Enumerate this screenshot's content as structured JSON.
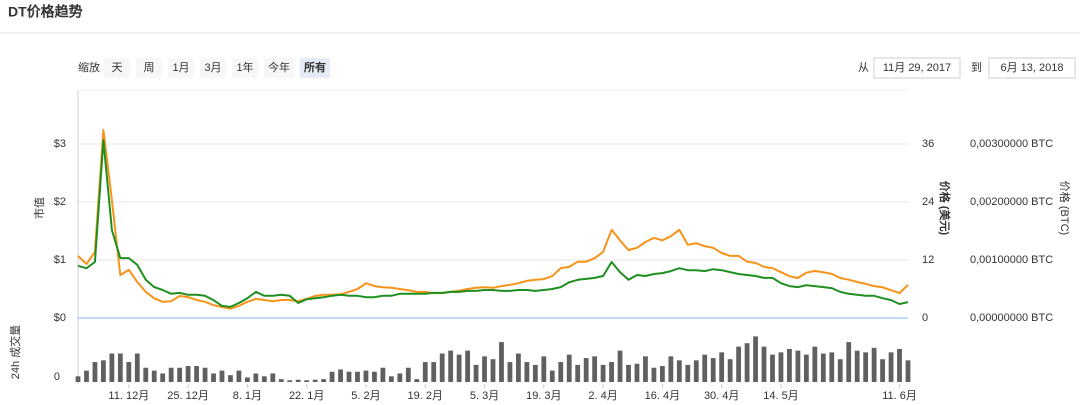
{
  "header": {
    "title": "DT价格趋势"
  },
  "controls": {
    "zoom_label": "缩放",
    "buttons": [
      "天",
      "周",
      "1月",
      "3月",
      "1年",
      "今年",
      "所有"
    ],
    "selected": "所有",
    "from_label": "从",
    "from_date": "11月 29, 2017",
    "to_label": "到",
    "to_date": "6月 13, 2018"
  },
  "chart_data": {
    "type": "line",
    "categories": [
      null,
      null,
      null,
      null,
      null,
      null,
      "11. 12月",
      null,
      null,
      null,
      null,
      null,
      null,
      "25. 12月",
      null,
      null,
      null,
      null,
      null,
      null,
      "8. 1月",
      null,
      null,
      null,
      null,
      null,
      null,
      "22. 1月",
      null,
      null,
      null,
      null,
      null,
      null,
      "5. 2月",
      null,
      null,
      null,
      null,
      null,
      null,
      "19. 2月",
      null,
      null,
      null,
      null,
      null,
      null,
      "5. 3月",
      null,
      null,
      null,
      null,
      null,
      null,
      "19. 3月",
      null,
      null,
      null,
      null,
      null,
      null,
      "2. 4月",
      null,
      null,
      null,
      null,
      null,
      null,
      "16. 4月",
      null,
      null,
      null,
      null,
      null,
      null,
      "30. 4月",
      null,
      null,
      null,
      null,
      null,
      null,
      "14. 5月",
      null,
      null,
      null,
      null,
      null,
      null,
      null,
      null,
      null,
      null,
      null,
      null,
      null,
      "11. 6月",
      null
    ],
    "ylabel": "市值",
    "ylim": [
      0,
      3.93
    ],
    "yticks": [
      {
        "value": 0,
        "label": "$0"
      },
      {
        "value": 1,
        "label": "$1"
      },
      {
        "value": 2,
        "label": "$2"
      },
      {
        "value": 3,
        "label": "$3"
      }
    ],
    "y2label": "价格 (美元)",
    "y2lim": [
      0,
      47.2
    ],
    "y2ticks": [
      0,
      12,
      24,
      36
    ],
    "y3label": "价格 (BTC)",
    "y3lim": [
      0,
      0.00393
    ],
    "y3ticks": [
      {
        "value": 0,
        "label": "0,00000000 BTC"
      },
      {
        "value": 0.001,
        "label": "0,00100000 BTC"
      },
      {
        "value": 0.002,
        "label": "0,00200000 BTC"
      },
      {
        "value": 0.003,
        "label": "0,00300000 BTC"
      }
    ],
    "series": [
      {
        "name": "价格 (美元)",
        "axis": "y2",
        "color": "#1f8f1f",
        "values": [
          10.8,
          10.3,
          11.6,
          36.8,
          18.2,
          12.4,
          12.4,
          11.0,
          7.9,
          6.4,
          5.8,
          5.0,
          5.2,
          4.8,
          4.8,
          4.6,
          3.7,
          2.5,
          2.3,
          3.1,
          4.1,
          5.4,
          4.6,
          4.6,
          4.8,
          4.6,
          3.1,
          3.9,
          4.1,
          4.3,
          4.6,
          4.8,
          4.6,
          4.6,
          4.3,
          4.3,
          4.6,
          4.6,
          5.0,
          5.0,
          5.0,
          5.0,
          5.2,
          5.2,
          5.4,
          5.4,
          5.6,
          5.6,
          5.8,
          5.8,
          5.6,
          5.6,
          5.8,
          5.8,
          5.6,
          5.8,
          6.0,
          6.4,
          7.4,
          7.9,
          8.1,
          8.3,
          8.7,
          11.6,
          9.5,
          7.9,
          8.9,
          8.7,
          9.1,
          9.3,
          9.7,
          10.3,
          9.9,
          9.9,
          9.7,
          10.1,
          9.9,
          9.5,
          9.1,
          8.9,
          8.7,
          8.3,
          8.3,
          7.2,
          6.6,
          6.4,
          6.8,
          6.6,
          6.4,
          6.2,
          5.4,
          5.0,
          4.8,
          4.6,
          4.6,
          4.1,
          3.7,
          2.9,
          3.3
        ]
      },
      {
        "name": "价格 (BTC)",
        "axis": "y3",
        "color": "#f7931a",
        "values": [
          0.00107,
          0.00093,
          0.00114,
          0.00324,
          0.00203,
          0.00074,
          0.00083,
          0.00062,
          0.00045,
          0.00034,
          0.00028,
          0.00029,
          0.00038,
          0.00036,
          0.00031,
          0.00028,
          0.00022,
          0.00019,
          0.00016,
          0.00021,
          0.00028,
          0.00033,
          0.00031,
          0.00029,
          0.00031,
          0.00031,
          0.00029,
          0.00033,
          0.00038,
          0.0004,
          0.0004,
          0.00041,
          0.00045,
          0.0005,
          0.0006,
          0.00055,
          0.00053,
          0.00052,
          0.0005,
          0.00048,
          0.00045,
          0.00045,
          0.00043,
          0.00043,
          0.00045,
          0.00047,
          0.0005,
          0.00052,
          0.00053,
          0.00052,
          0.00055,
          0.00057,
          0.0006,
          0.00064,
          0.00066,
          0.00067,
          0.00072,
          0.00086,
          0.00088,
          0.00097,
          0.00097,
          0.00103,
          0.00114,
          0.00152,
          0.00134,
          0.00117,
          0.00121,
          0.00131,
          0.00138,
          0.00134,
          0.00141,
          0.00152,
          0.00126,
          0.00129,
          0.00124,
          0.00121,
          0.00112,
          0.00107,
          0.00107,
          0.00097,
          0.00095,
          0.00088,
          0.00086,
          0.00079,
          0.00072,
          0.00069,
          0.00078,
          0.00081,
          0.00079,
          0.00076,
          0.00069,
          0.00066,
          0.00062,
          0.00059,
          0.00055,
          0.00053,
          0.00048,
          0.00043,
          0.00057
        ]
      }
    ],
    "volume": {
      "label": "24h 成交量",
      "color": "#606060",
      "ylim": [
        0,
        100
      ],
      "yticks": [
        0
      ],
      "values": [
        10,
        20,
        35,
        38,
        50,
        50,
        35,
        50,
        25,
        20,
        15,
        25,
        25,
        28,
        28,
        25,
        15,
        20,
        12,
        20,
        8,
        15,
        10,
        15,
        5,
        3,
        4,
        3,
        4,
        5,
        18,
        22,
        18,
        18,
        20,
        18,
        25,
        10,
        15,
        25,
        5,
        35,
        35,
        50,
        55,
        48,
        55,
        30,
        45,
        40,
        70,
        35,
        50,
        35,
        30,
        45,
        20,
        35,
        48,
        30,
        42,
        45,
        30,
        35,
        55,
        30,
        32,
        45,
        25,
        28,
        45,
        38,
        30,
        38,
        48,
        42,
        52,
        40,
        62,
        68,
        80,
        62,
        48,
        52,
        58,
        55,
        48,
        62,
        50,
        52,
        40,
        70,
        55,
        52,
        60,
        40,
        52,
        58,
        38
      ]
    }
  }
}
